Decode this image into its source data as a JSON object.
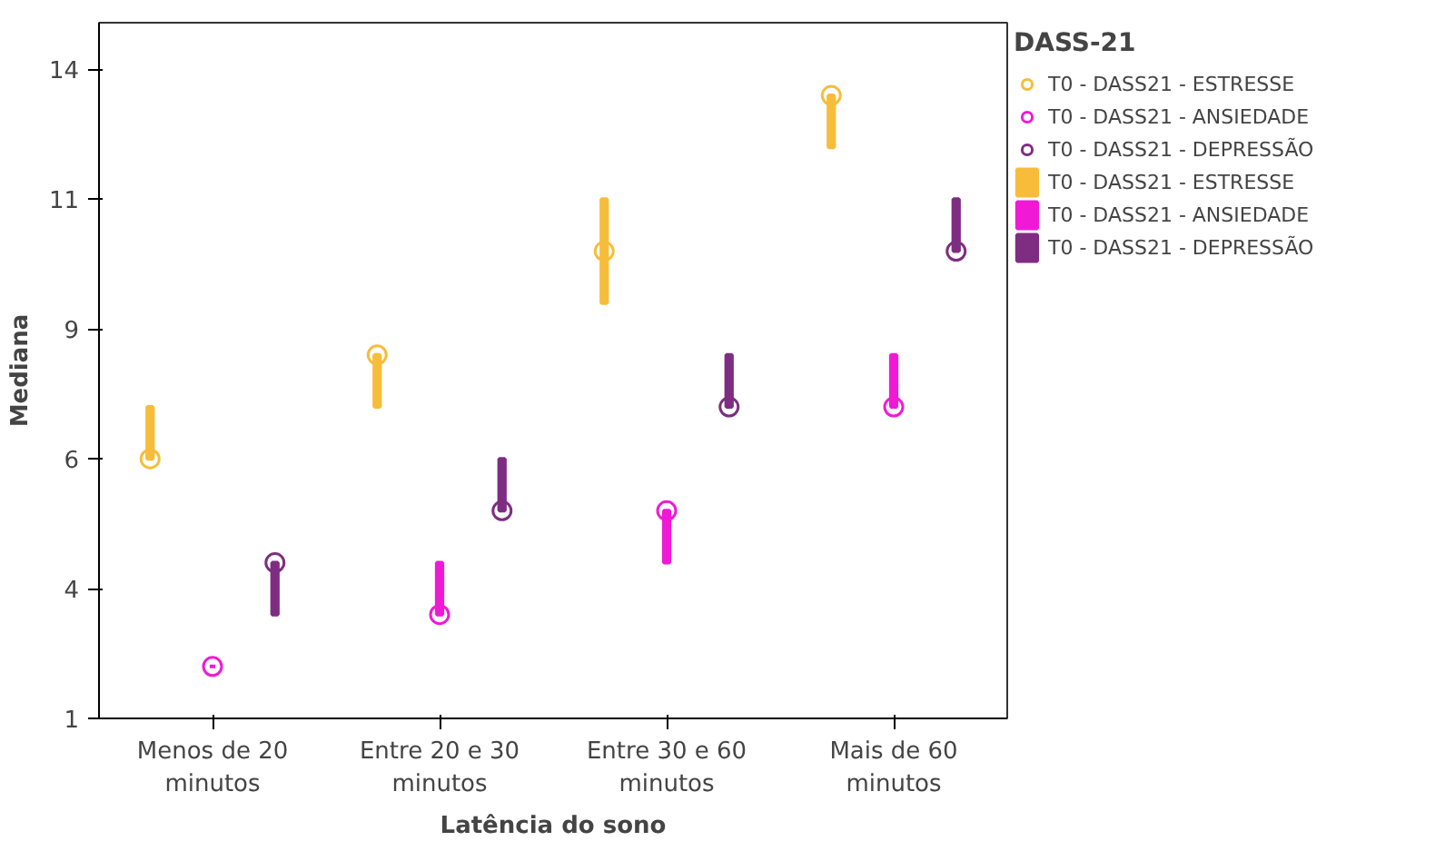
{
  "chart_data": {
    "type": "scatter",
    "xlabel": "Latência do sono",
    "ylabel": "Mediana",
    "legend_title": "DASS-21",
    "legend": "right",
    "grid": false,
    "marker": "circle",
    "categories": [
      "Menos de 20\nminutos",
      "Entre 20 e 30\nminutos",
      "Entre 30 e 60\nminutos",
      "Mais de 60\nminutos"
    ],
    "ylim": [
      1,
      14.4
    ],
    "yticks": [
      {
        "value": 1,
        "label": "1"
      },
      {
        "value": 3.5,
        "label": "4"
      },
      {
        "value": 6,
        "label": "6"
      },
      {
        "value": 8.5,
        "label": "9"
      },
      {
        "value": 11,
        "label": "11"
      },
      {
        "value": 13.5,
        "label": "14"
      }
    ],
    "series": [
      {
        "name": "T0 - DASS21 - ESTRESSE",
        "color": "#f7bd3a",
        "values": [
          6,
          8,
          10,
          13
        ]
      },
      {
        "name": "T0 - DASS21 - ANSIEDADE",
        "color": "#f01ad6",
        "values": [
          2,
          3,
          5,
          7
        ]
      },
      {
        "name": "T0 - DASS21 - DEPRESSÃO",
        "color": "#7e2d82",
        "values": [
          4,
          5,
          7,
          10
        ]
      },
      {
        "name": "T0 - DASS21 - ESTRESSE",
        "type": "bar",
        "color": "#f7bd3a",
        "base": [
          6,
          7,
          9,
          12
        ],
        "values": [
          1,
          1,
          2,
          1
        ]
      },
      {
        "name": "T0 - DASS21 - ANSIEDADE",
        "type": "bar",
        "color": "#f01ad6",
        "base": [
          2,
          3,
          4,
          7
        ],
        "values": [
          0,
          1,
          1,
          1
        ]
      },
      {
        "name": "T0 - DASS21 - DEPRESSÃO",
        "type": "bar",
        "color": "#7e2d82",
        "base": [
          3,
          5,
          7,
          10
        ],
        "values": [
          1,
          1,
          1,
          1
        ]
      }
    ]
  }
}
